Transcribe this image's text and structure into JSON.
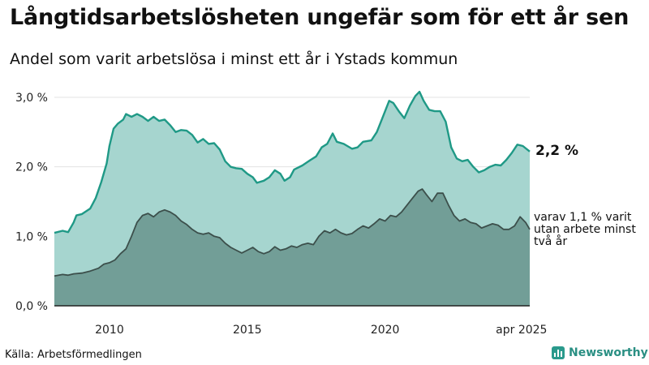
{
  "header": {
    "title": "Långtidsarbetslösheten ungefär som för ett år sen",
    "subtitle": "Andel som varit arbetslösa i minst ett år i Ystads kommun"
  },
  "annotations": {
    "main_value": "2,2 %",
    "sub_value": "varav 1,1 % varit utan arbete minst två år"
  },
  "footer": {
    "source": "Källa: Arbetsförmedlingen",
    "brand": "Newsworthy"
  },
  "colors": {
    "upper_fill": "#a6d5cf",
    "upper_line": "#1f9986",
    "lower_fill": "#729e97",
    "lower_line": "#3c4f4b",
    "grid": "#e3e3e3"
  },
  "chart_data": {
    "type": "area",
    "title": "Långtidsarbetslösheten ungefär som för ett år sen",
    "xlabel": "",
    "ylabel": "",
    "xlim": [
      2008.0,
      2025.25
    ],
    "ylim": [
      0,
      3.0
    ],
    "yticks": [
      0,
      1,
      2,
      3
    ],
    "ytick_labels": [
      "0,0 %",
      "1,0 %",
      "2,0 %",
      "3,0 %"
    ],
    "xticks": [
      2010,
      2015,
      2020,
      2024.95
    ],
    "xtick_labels": [
      "2010",
      "2015",
      "2020",
      "apr 2025"
    ],
    "series": [
      {
        "name": "Minst ett år",
        "points": [
          [
            2008.0,
            1.05
          ],
          [
            2008.3,
            1.08
          ],
          [
            2008.5,
            1.06
          ],
          [
            2008.7,
            1.2
          ],
          [
            2008.8,
            1.3
          ],
          [
            2009.0,
            1.32
          ],
          [
            2009.3,
            1.4
          ],
          [
            2009.5,
            1.55
          ],
          [
            2009.7,
            1.78
          ],
          [
            2009.9,
            2.05
          ],
          [
            2010.0,
            2.3
          ],
          [
            2010.15,
            2.55
          ],
          [
            2010.3,
            2.62
          ],
          [
            2010.5,
            2.68
          ],
          [
            2010.6,
            2.76
          ],
          [
            2010.8,
            2.72
          ],
          [
            2011.0,
            2.76
          ],
          [
            2011.2,
            2.72
          ],
          [
            2011.4,
            2.66
          ],
          [
            2011.6,
            2.72
          ],
          [
            2011.8,
            2.66
          ],
          [
            2012.0,
            2.68
          ],
          [
            2012.2,
            2.6
          ],
          [
            2012.4,
            2.5
          ],
          [
            2012.6,
            2.53
          ],
          [
            2012.8,
            2.52
          ],
          [
            2013.0,
            2.46
          ],
          [
            2013.2,
            2.35
          ],
          [
            2013.4,
            2.4
          ],
          [
            2013.6,
            2.33
          ],
          [
            2013.8,
            2.34
          ],
          [
            2014.0,
            2.25
          ],
          [
            2014.2,
            2.08
          ],
          [
            2014.4,
            2.0
          ],
          [
            2014.6,
            1.98
          ],
          [
            2014.8,
            1.97
          ],
          [
            2015.0,
            1.9
          ],
          [
            2015.2,
            1.85
          ],
          [
            2015.35,
            1.77
          ],
          [
            2015.6,
            1.8
          ],
          [
            2015.8,
            1.85
          ],
          [
            2016.0,
            1.95
          ],
          [
            2016.2,
            1.9
          ],
          [
            2016.35,
            1.8
          ],
          [
            2016.55,
            1.85
          ],
          [
            2016.7,
            1.96
          ],
          [
            2017.0,
            2.02
          ],
          [
            2017.3,
            2.1
          ],
          [
            2017.5,
            2.15
          ],
          [
            2017.7,
            2.28
          ],
          [
            2017.9,
            2.33
          ],
          [
            2018.1,
            2.48
          ],
          [
            2018.25,
            2.36
          ],
          [
            2018.5,
            2.33
          ],
          [
            2018.8,
            2.26
          ],
          [
            2019.0,
            2.28
          ],
          [
            2019.2,
            2.36
          ],
          [
            2019.5,
            2.38
          ],
          [
            2019.7,
            2.5
          ],
          [
            2019.9,
            2.7
          ],
          [
            2020.15,
            2.95
          ],
          [
            2020.3,
            2.92
          ],
          [
            2020.5,
            2.8
          ],
          [
            2020.7,
            2.7
          ],
          [
            2020.9,
            2.88
          ],
          [
            2021.1,
            3.02
          ],
          [
            2021.25,
            3.08
          ],
          [
            2021.4,
            2.95
          ],
          [
            2021.6,
            2.82
          ],
          [
            2021.8,
            2.8
          ],
          [
            2022.0,
            2.8
          ],
          [
            2022.2,
            2.65
          ],
          [
            2022.4,
            2.28
          ],
          [
            2022.6,
            2.12
          ],
          [
            2022.8,
            2.08
          ],
          [
            2023.0,
            2.1
          ],
          [
            2023.2,
            2.0
          ],
          [
            2023.4,
            1.92
          ],
          [
            2023.6,
            1.95
          ],
          [
            2023.8,
            2.0
          ],
          [
            2024.0,
            2.03
          ],
          [
            2024.2,
            2.02
          ],
          [
            2024.4,
            2.1
          ],
          [
            2024.6,
            2.2
          ],
          [
            2024.8,
            2.32
          ],
          [
            2025.0,
            2.3
          ],
          [
            2025.25,
            2.22
          ]
        ]
      },
      {
        "name": "Minst två år",
        "points": [
          [
            2008.0,
            0.43
          ],
          [
            2008.3,
            0.45
          ],
          [
            2008.5,
            0.44
          ],
          [
            2008.7,
            0.46
          ],
          [
            2009.0,
            0.47
          ],
          [
            2009.3,
            0.5
          ],
          [
            2009.6,
            0.54
          ],
          [
            2009.8,
            0.6
          ],
          [
            2010.0,
            0.62
          ],
          [
            2010.2,
            0.66
          ],
          [
            2010.4,
            0.75
          ],
          [
            2010.6,
            0.82
          ],
          [
            2010.8,
            1.0
          ],
          [
            2011.0,
            1.2
          ],
          [
            2011.2,
            1.3
          ],
          [
            2011.4,
            1.33
          ],
          [
            2011.6,
            1.28
          ],
          [
            2011.8,
            1.35
          ],
          [
            2012.0,
            1.38
          ],
          [
            2012.2,
            1.35
          ],
          [
            2012.4,
            1.3
          ],
          [
            2012.6,
            1.22
          ],
          [
            2012.8,
            1.17
          ],
          [
            2013.0,
            1.1
          ],
          [
            2013.2,
            1.05
          ],
          [
            2013.4,
            1.03
          ],
          [
            2013.6,
            1.05
          ],
          [
            2013.8,
            1.0
          ],
          [
            2014.0,
            0.98
          ],
          [
            2014.2,
            0.9
          ],
          [
            2014.4,
            0.84
          ],
          [
            2014.6,
            0.8
          ],
          [
            2014.8,
            0.76
          ],
          [
            2015.0,
            0.8
          ],
          [
            2015.2,
            0.84
          ],
          [
            2015.4,
            0.78
          ],
          [
            2015.6,
            0.75
          ],
          [
            2015.8,
            0.78
          ],
          [
            2016.0,
            0.85
          ],
          [
            2016.2,
            0.8
          ],
          [
            2016.4,
            0.82
          ],
          [
            2016.6,
            0.86
          ],
          [
            2016.8,
            0.84
          ],
          [
            2017.0,
            0.88
          ],
          [
            2017.2,
            0.9
          ],
          [
            2017.4,
            0.88
          ],
          [
            2017.6,
            1.0
          ],
          [
            2017.8,
            1.08
          ],
          [
            2018.0,
            1.05
          ],
          [
            2018.2,
            1.1
          ],
          [
            2018.4,
            1.05
          ],
          [
            2018.6,
            1.02
          ],
          [
            2018.8,
            1.04
          ],
          [
            2019.0,
            1.1
          ],
          [
            2019.2,
            1.15
          ],
          [
            2019.4,
            1.12
          ],
          [
            2019.6,
            1.18
          ],
          [
            2019.8,
            1.25
          ],
          [
            2020.0,
            1.22
          ],
          [
            2020.2,
            1.3
          ],
          [
            2020.4,
            1.28
          ],
          [
            2020.6,
            1.35
          ],
          [
            2020.8,
            1.45
          ],
          [
            2021.0,
            1.55
          ],
          [
            2021.2,
            1.65
          ],
          [
            2021.35,
            1.68
          ],
          [
            2021.5,
            1.6
          ],
          [
            2021.7,
            1.5
          ],
          [
            2021.9,
            1.62
          ],
          [
            2022.1,
            1.62
          ],
          [
            2022.3,
            1.45
          ],
          [
            2022.5,
            1.3
          ],
          [
            2022.7,
            1.22
          ],
          [
            2022.9,
            1.25
          ],
          [
            2023.1,
            1.2
          ],
          [
            2023.3,
            1.18
          ],
          [
            2023.5,
            1.12
          ],
          [
            2023.7,
            1.15
          ],
          [
            2023.9,
            1.18
          ],
          [
            2024.1,
            1.16
          ],
          [
            2024.3,
            1.1
          ],
          [
            2024.5,
            1.1
          ],
          [
            2024.7,
            1.15
          ],
          [
            2024.9,
            1.28
          ],
          [
            2025.1,
            1.2
          ],
          [
            2025.25,
            1.1
          ]
        ]
      }
    ]
  }
}
